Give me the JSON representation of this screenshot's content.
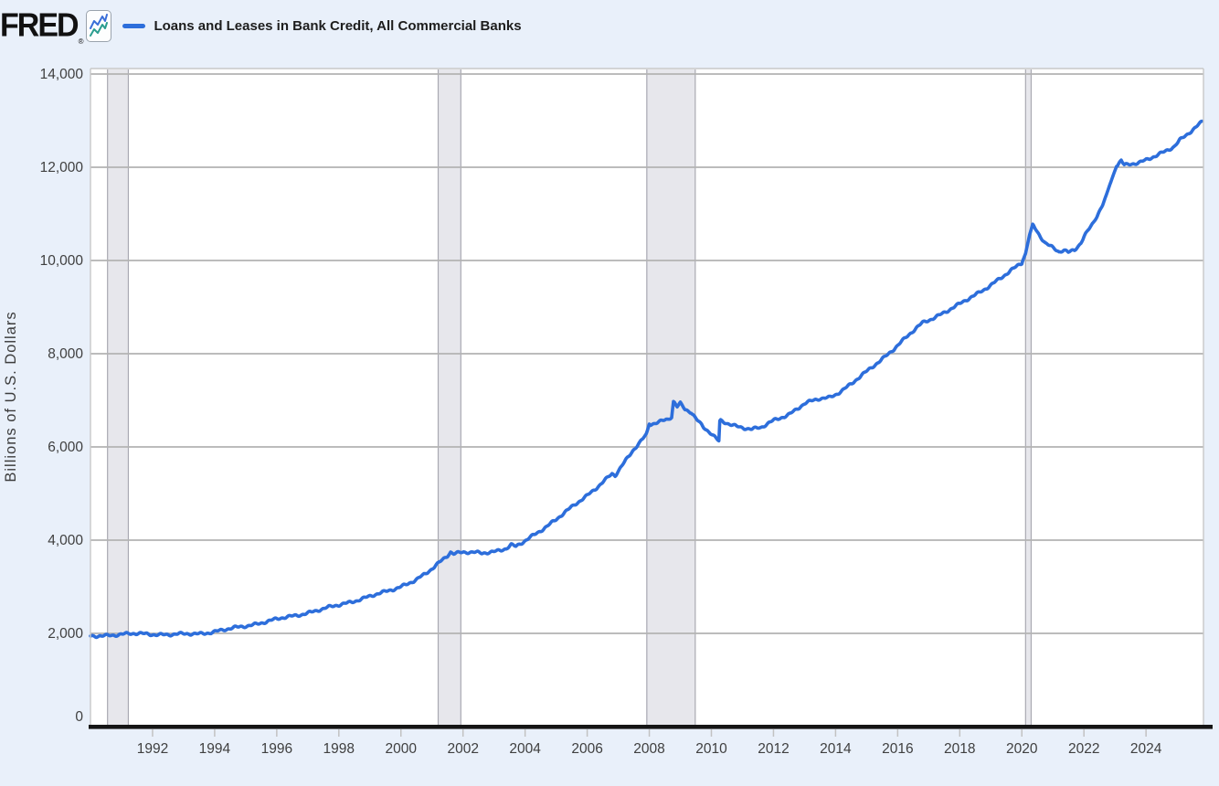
{
  "header": {
    "logo": "FRED",
    "registered": "®",
    "legend_label": "Loans and Leases in Bank Credit, All Commercial Banks"
  },
  "colors": {
    "page_background": "#e9f0fa",
    "plot_background": "#ffffff",
    "line": "#2d6edb",
    "gridline": "#b3b3b3",
    "plot_border": "#c8c8c8",
    "recession_band_fill": "#e7e7ec",
    "recession_band_edge": "#a9a9b2",
    "axis_line": "#151515",
    "tick_text": "#3f3f3f"
  },
  "chart_data": {
    "type": "line",
    "title": "Loans and Leases in Bank Credit, All Commercial Banks",
    "xlabel": "",
    "ylabel": "Billions of U.S. Dollars",
    "legend_position": "top-left",
    "grid": "horizontal",
    "xlim": [
      1990,
      2025.85
    ],
    "ylim": [
      0,
      14000
    ],
    "x_ticks": [
      {
        "value": 1992,
        "label": "1992"
      },
      {
        "value": 1994,
        "label": "1994"
      },
      {
        "value": 1996,
        "label": "1996"
      },
      {
        "value": 1998,
        "label": "1998"
      },
      {
        "value": 2000,
        "label": "2000"
      },
      {
        "value": 2002,
        "label": "2002"
      },
      {
        "value": 2004,
        "label": "2004"
      },
      {
        "value": 2006,
        "label": "2006"
      },
      {
        "value": 2008,
        "label": "2008"
      },
      {
        "value": 2010,
        "label": "2010"
      },
      {
        "value": 2012,
        "label": "2012"
      },
      {
        "value": 2014,
        "label": "2014"
      },
      {
        "value": 2016,
        "label": "2016"
      },
      {
        "value": 2018,
        "label": "2018"
      },
      {
        "value": 2020,
        "label": "2020"
      },
      {
        "value": 2022,
        "label": "2022"
      },
      {
        "value": 2024,
        "label": "2024"
      }
    ],
    "y_ticks": [
      {
        "value": 0,
        "label": "0"
      },
      {
        "value": 2000,
        "label": "2,000"
      },
      {
        "value": 4000,
        "label": "4,000"
      },
      {
        "value": 6000,
        "label": "6,000"
      },
      {
        "value": 8000,
        "label": "8,000"
      },
      {
        "value": 10000,
        "label": "10,000"
      },
      {
        "value": 12000,
        "label": "12,000"
      },
      {
        "value": 14000,
        "label": "14,000"
      }
    ],
    "recession_bands": [
      {
        "start": 1990.55,
        "end": 1991.22
      },
      {
        "start": 2001.2,
        "end": 2001.93
      },
      {
        "start": 2007.92,
        "end": 2009.48
      },
      {
        "start": 2020.12,
        "end": 2020.3
      }
    ],
    "series": [
      {
        "name": "Loans and Leases in Bank Credit, All Commercial Banks",
        "units": "Billions of U.S. Dollars",
        "points": [
          [
            1990.0,
            1930
          ],
          [
            1990.3,
            1950
          ],
          [
            1990.7,
            1970
          ],
          [
            1991.0,
            1980
          ],
          [
            1991.5,
            1990
          ],
          [
            1992.0,
            1985
          ],
          [
            1992.5,
            1975
          ],
          [
            1993.0,
            1980
          ],
          [
            1993.5,
            1995
          ],
          [
            1994.0,
            2040
          ],
          [
            1994.5,
            2095
          ],
          [
            1995.0,
            2160
          ],
          [
            1995.5,
            2230
          ],
          [
            1996.0,
            2300
          ],
          [
            1996.5,
            2370
          ],
          [
            1997.0,
            2445
          ],
          [
            1997.5,
            2520
          ],
          [
            1998.0,
            2610
          ],
          [
            1998.5,
            2700
          ],
          [
            1999.0,
            2790
          ],
          [
            1999.5,
            2890
          ],
          [
            2000.0,
            3010
          ],
          [
            2000.5,
            3150
          ],
          [
            2000.8,
            3270
          ],
          [
            2001.0,
            3380
          ],
          [
            2001.3,
            3560
          ],
          [
            2001.5,
            3680
          ],
          [
            2001.6,
            3760
          ],
          [
            2001.7,
            3720
          ],
          [
            2002.0,
            3740
          ],
          [
            2002.3,
            3730
          ],
          [
            2002.6,
            3715
          ],
          [
            2003.0,
            3760
          ],
          [
            2003.4,
            3830
          ],
          [
            2003.55,
            3900
          ],
          [
            2003.7,
            3855
          ],
          [
            2004.0,
            3975
          ],
          [
            2004.5,
            4210
          ],
          [
            2005.0,
            4450
          ],
          [
            2005.5,
            4700
          ],
          [
            2006.0,
            4960
          ],
          [
            2006.5,
            5250
          ],
          [
            2006.8,
            5420
          ],
          [
            2006.9,
            5380
          ],
          [
            2007.2,
            5660
          ],
          [
            2007.5,
            5950
          ],
          [
            2007.9,
            6270
          ],
          [
            2008.0,
            6490
          ],
          [
            2008.3,
            6530
          ],
          [
            2008.6,
            6580
          ],
          [
            2008.72,
            6640
          ],
          [
            2008.78,
            6975
          ],
          [
            2008.9,
            6860
          ],
          [
            2009.0,
            6930
          ],
          [
            2009.15,
            6810
          ],
          [
            2009.35,
            6760
          ],
          [
            2009.5,
            6620
          ],
          [
            2009.75,
            6420
          ],
          [
            2010.0,
            6280
          ],
          [
            2010.15,
            6170
          ],
          [
            2010.24,
            6110
          ],
          [
            2010.27,
            6560
          ],
          [
            2010.5,
            6505
          ],
          [
            2010.8,
            6450
          ],
          [
            2011.0,
            6425
          ],
          [
            2011.3,
            6385
          ],
          [
            2011.6,
            6410
          ],
          [
            2012.0,
            6560
          ],
          [
            2012.5,
            6705
          ],
          [
            2013.0,
            6930
          ],
          [
            2013.5,
            7030
          ],
          [
            2013.8,
            7060
          ],
          [
            2014.0,
            7130
          ],
          [
            2014.5,
            7350
          ],
          [
            2015.0,
            7610
          ],
          [
            2015.5,
            7890
          ],
          [
            2016.0,
            8180
          ],
          [
            2016.5,
            8480
          ],
          [
            2016.8,
            8660
          ],
          [
            2017.2,
            8790
          ],
          [
            2017.6,
            8920
          ],
          [
            2018.0,
            9060
          ],
          [
            2018.5,
            9265
          ],
          [
            2019.0,
            9480
          ],
          [
            2019.5,
            9700
          ],
          [
            2020.0,
            9950
          ],
          [
            2020.12,
            10150
          ],
          [
            2020.25,
            10550
          ],
          [
            2020.35,
            10780
          ],
          [
            2020.5,
            10620
          ],
          [
            2020.75,
            10380
          ],
          [
            2021.0,
            10260
          ],
          [
            2021.2,
            10175
          ],
          [
            2021.35,
            10220
          ],
          [
            2021.5,
            10170
          ],
          [
            2021.7,
            10230
          ],
          [
            2021.9,
            10390
          ],
          [
            2022.0,
            10520
          ],
          [
            2022.3,
            10810
          ],
          [
            2022.6,
            11180
          ],
          [
            2022.9,
            11750
          ],
          [
            2023.05,
            12020
          ],
          [
            2023.2,
            12150
          ],
          [
            2023.3,
            12050
          ],
          [
            2023.5,
            12080
          ],
          [
            2023.8,
            12110
          ],
          [
            2024.0,
            12150
          ],
          [
            2024.3,
            12230
          ],
          [
            2024.6,
            12330
          ],
          [
            2024.9,
            12450
          ],
          [
            2025.1,
            12600
          ],
          [
            2025.4,
            12750
          ],
          [
            2025.6,
            12850
          ],
          [
            2025.8,
            12960
          ]
        ]
      }
    ]
  }
}
